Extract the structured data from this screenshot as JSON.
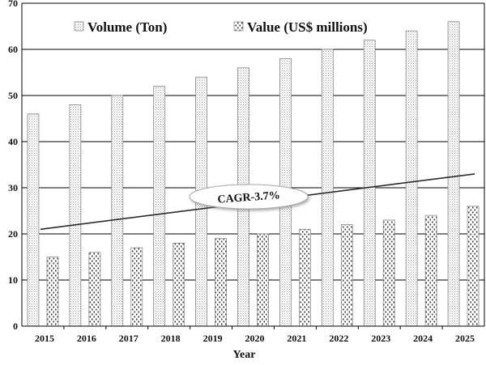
{
  "chart_data": {
    "type": "bar",
    "title": "",
    "xlabel": "Year",
    "ylabel": "",
    "ylim": [
      0,
      70
    ],
    "yticks": [
      0,
      10,
      20,
      30,
      40,
      50,
      60,
      70
    ],
    "grid": true,
    "legend_position": "top",
    "categories": [
      "2015",
      "2016",
      "2017",
      "2018",
      "2019",
      "2020",
      "2021",
      "2022",
      "2023",
      "2024",
      "2025"
    ],
    "series": [
      {
        "name": "Volume (Ton)",
        "pattern": "dots-fine",
        "values": [
          46,
          48,
          50,
          52,
          54,
          56,
          58,
          60,
          62,
          64,
          66
        ]
      },
      {
        "name": "Value (US$ millions)",
        "pattern": "dots-coarse",
        "values": [
          15,
          16,
          17,
          18,
          19,
          20,
          21,
          22,
          23,
          24,
          26
        ]
      }
    ],
    "trendline": {
      "start_value": 21,
      "end_value": 33,
      "label": "CAGR-3.7%"
    }
  },
  "colors": {
    "bar_fill": "#ffffff",
    "bar_stroke": "#8a8a8a",
    "pattern_fine": "#9a9a9a",
    "pattern_coarse": "#3a3a3a",
    "grid": "#000000",
    "trend": "#2b2b2b"
  }
}
